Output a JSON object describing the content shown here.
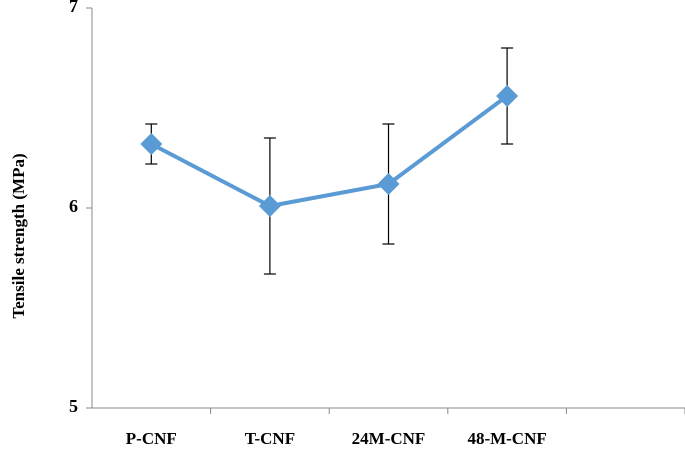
{
  "chart_data": {
    "type": "line",
    "title": "",
    "xlabel": "",
    "ylabel": "Tensile strength (MPa)",
    "categories": [
      "P-CNF",
      "T-CNF",
      "24M-CNF",
      "48-M-CNF"
    ],
    "extra_category_slots": 1,
    "ylim": [
      5,
      7
    ],
    "yticks": [
      5,
      6,
      7
    ],
    "grid": false,
    "legend": "none",
    "series": [
      {
        "values": [
          6.32,
          6.01,
          6.12,
          6.56
        ],
        "error_upper": [
          6.42,
          6.35,
          6.42,
          6.8
        ],
        "error_lower": [
          6.22,
          5.67,
          5.82,
          6.32
        ],
        "color": "#5B9BD5",
        "marker": "diamond"
      }
    ]
  }
}
